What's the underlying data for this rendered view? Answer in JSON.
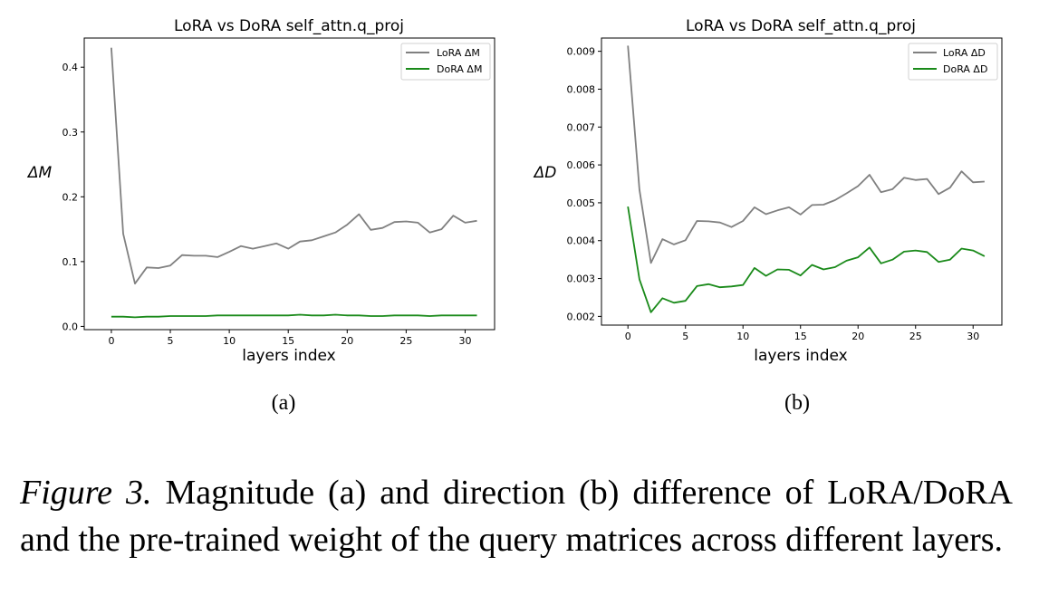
{
  "chart_data": [
    {
      "type": "line",
      "panel_label": "(a)",
      "title": "LoRA vs DoRA self_attn.q_proj",
      "xlabel": "layers index",
      "ylabel": "ΔM",
      "xlim": [
        -2.3,
        32.5
      ],
      "ylim": [
        -0.005,
        0.445
      ],
      "xticks": [
        0,
        5,
        10,
        15,
        20,
        25,
        30
      ],
      "yticks": [
        0.0,
        0.1,
        0.2,
        0.3,
        0.4
      ],
      "ytick_labels": [
        "0.0",
        "0.1",
        "0.2",
        "0.3",
        "0.4"
      ],
      "legend_location": "top-right",
      "x": [
        0,
        1,
        2,
        3,
        4,
        5,
        6,
        7,
        8,
        9,
        10,
        11,
        12,
        13,
        14,
        15,
        16,
        17,
        18,
        19,
        20,
        21,
        22,
        23,
        24,
        25,
        26,
        27,
        28,
        29,
        30,
        31
      ],
      "series": [
        {
          "name": "LoRA ΔM",
          "color": "#808080",
          "values": [
            0.43,
            0.143,
            0.066,
            0.091,
            0.09,
            0.094,
            0.11,
            0.109,
            0.109,
            0.107,
            0.115,
            0.124,
            0.12,
            0.124,
            0.128,
            0.12,
            0.131,
            0.133,
            0.139,
            0.145,
            0.157,
            0.173,
            0.149,
            0.152,
            0.161,
            0.162,
            0.16,
            0.145,
            0.15,
            0.171,
            0.16,
            0.163
          ]
        },
        {
          "name": "DoRA ΔM",
          "color": "#1a8a1a",
          "values": [
            0.015,
            0.015,
            0.014,
            0.015,
            0.015,
            0.016,
            0.016,
            0.016,
            0.016,
            0.017,
            0.017,
            0.017,
            0.017,
            0.017,
            0.017,
            0.017,
            0.018,
            0.017,
            0.017,
            0.018,
            0.017,
            0.017,
            0.016,
            0.016,
            0.017,
            0.017,
            0.017,
            0.016,
            0.017,
            0.017,
            0.017,
            0.017
          ]
        }
      ]
    },
    {
      "type": "line",
      "panel_label": "(b)",
      "title": "LoRA vs DoRA self_attn.q_proj",
      "xlabel": "layers index",
      "ylabel": "ΔD",
      "xlim": [
        -2.3,
        32.5
      ],
      "ylim": [
        0.00177,
        0.00935
      ],
      "xticks": [
        0,
        5,
        10,
        15,
        20,
        25,
        30
      ],
      "yticks": [
        0.002,
        0.003,
        0.004,
        0.005,
        0.006,
        0.007,
        0.008,
        0.009
      ],
      "ytick_labels": [
        "0.002",
        "0.003",
        "0.004",
        "0.005",
        "0.006",
        "0.007",
        "0.008",
        "0.009"
      ],
      "legend_location": "top-right",
      "x": [
        0,
        1,
        2,
        3,
        4,
        5,
        6,
        7,
        8,
        9,
        10,
        11,
        12,
        13,
        14,
        15,
        16,
        17,
        18,
        19,
        20,
        21,
        22,
        23,
        24,
        25,
        26,
        27,
        28,
        29,
        30,
        31
      ],
      "series": [
        {
          "name": "LoRA ΔD",
          "color": "#808080",
          "values": [
            0.00915,
            0.00535,
            0.00341,
            0.00404,
            0.0039,
            0.00401,
            0.00452,
            0.00451,
            0.00448,
            0.00436,
            0.00452,
            0.00488,
            0.0047,
            0.0048,
            0.00488,
            0.00469,
            0.00494,
            0.00495,
            0.00507,
            0.00525,
            0.00544,
            0.00574,
            0.00528,
            0.00536,
            0.00566,
            0.0056,
            0.00563,
            0.00523,
            0.0054,
            0.00583,
            0.00554,
            0.00556
          ]
        },
        {
          "name": "DoRA ΔD",
          "color": "#1a8a1a",
          "values": [
            0.0049,
            0.00298,
            0.00211,
            0.00248,
            0.00236,
            0.00241,
            0.0028,
            0.00285,
            0.00277,
            0.00279,
            0.00283,
            0.00328,
            0.00307,
            0.00324,
            0.00323,
            0.00308,
            0.00336,
            0.00324,
            0.0033,
            0.00347,
            0.00356,
            0.00382,
            0.0034,
            0.0035,
            0.00371,
            0.00374,
            0.0037,
            0.00344,
            0.0035,
            0.00379,
            0.00374,
            0.00359
          ]
        }
      ]
    }
  ],
  "caption": {
    "label": "Figure 3.",
    "text": "Magnitude (a) and direction (b) difference of LoRA/DoRA and the pre-trained weight of the query matrices across different layers."
  }
}
